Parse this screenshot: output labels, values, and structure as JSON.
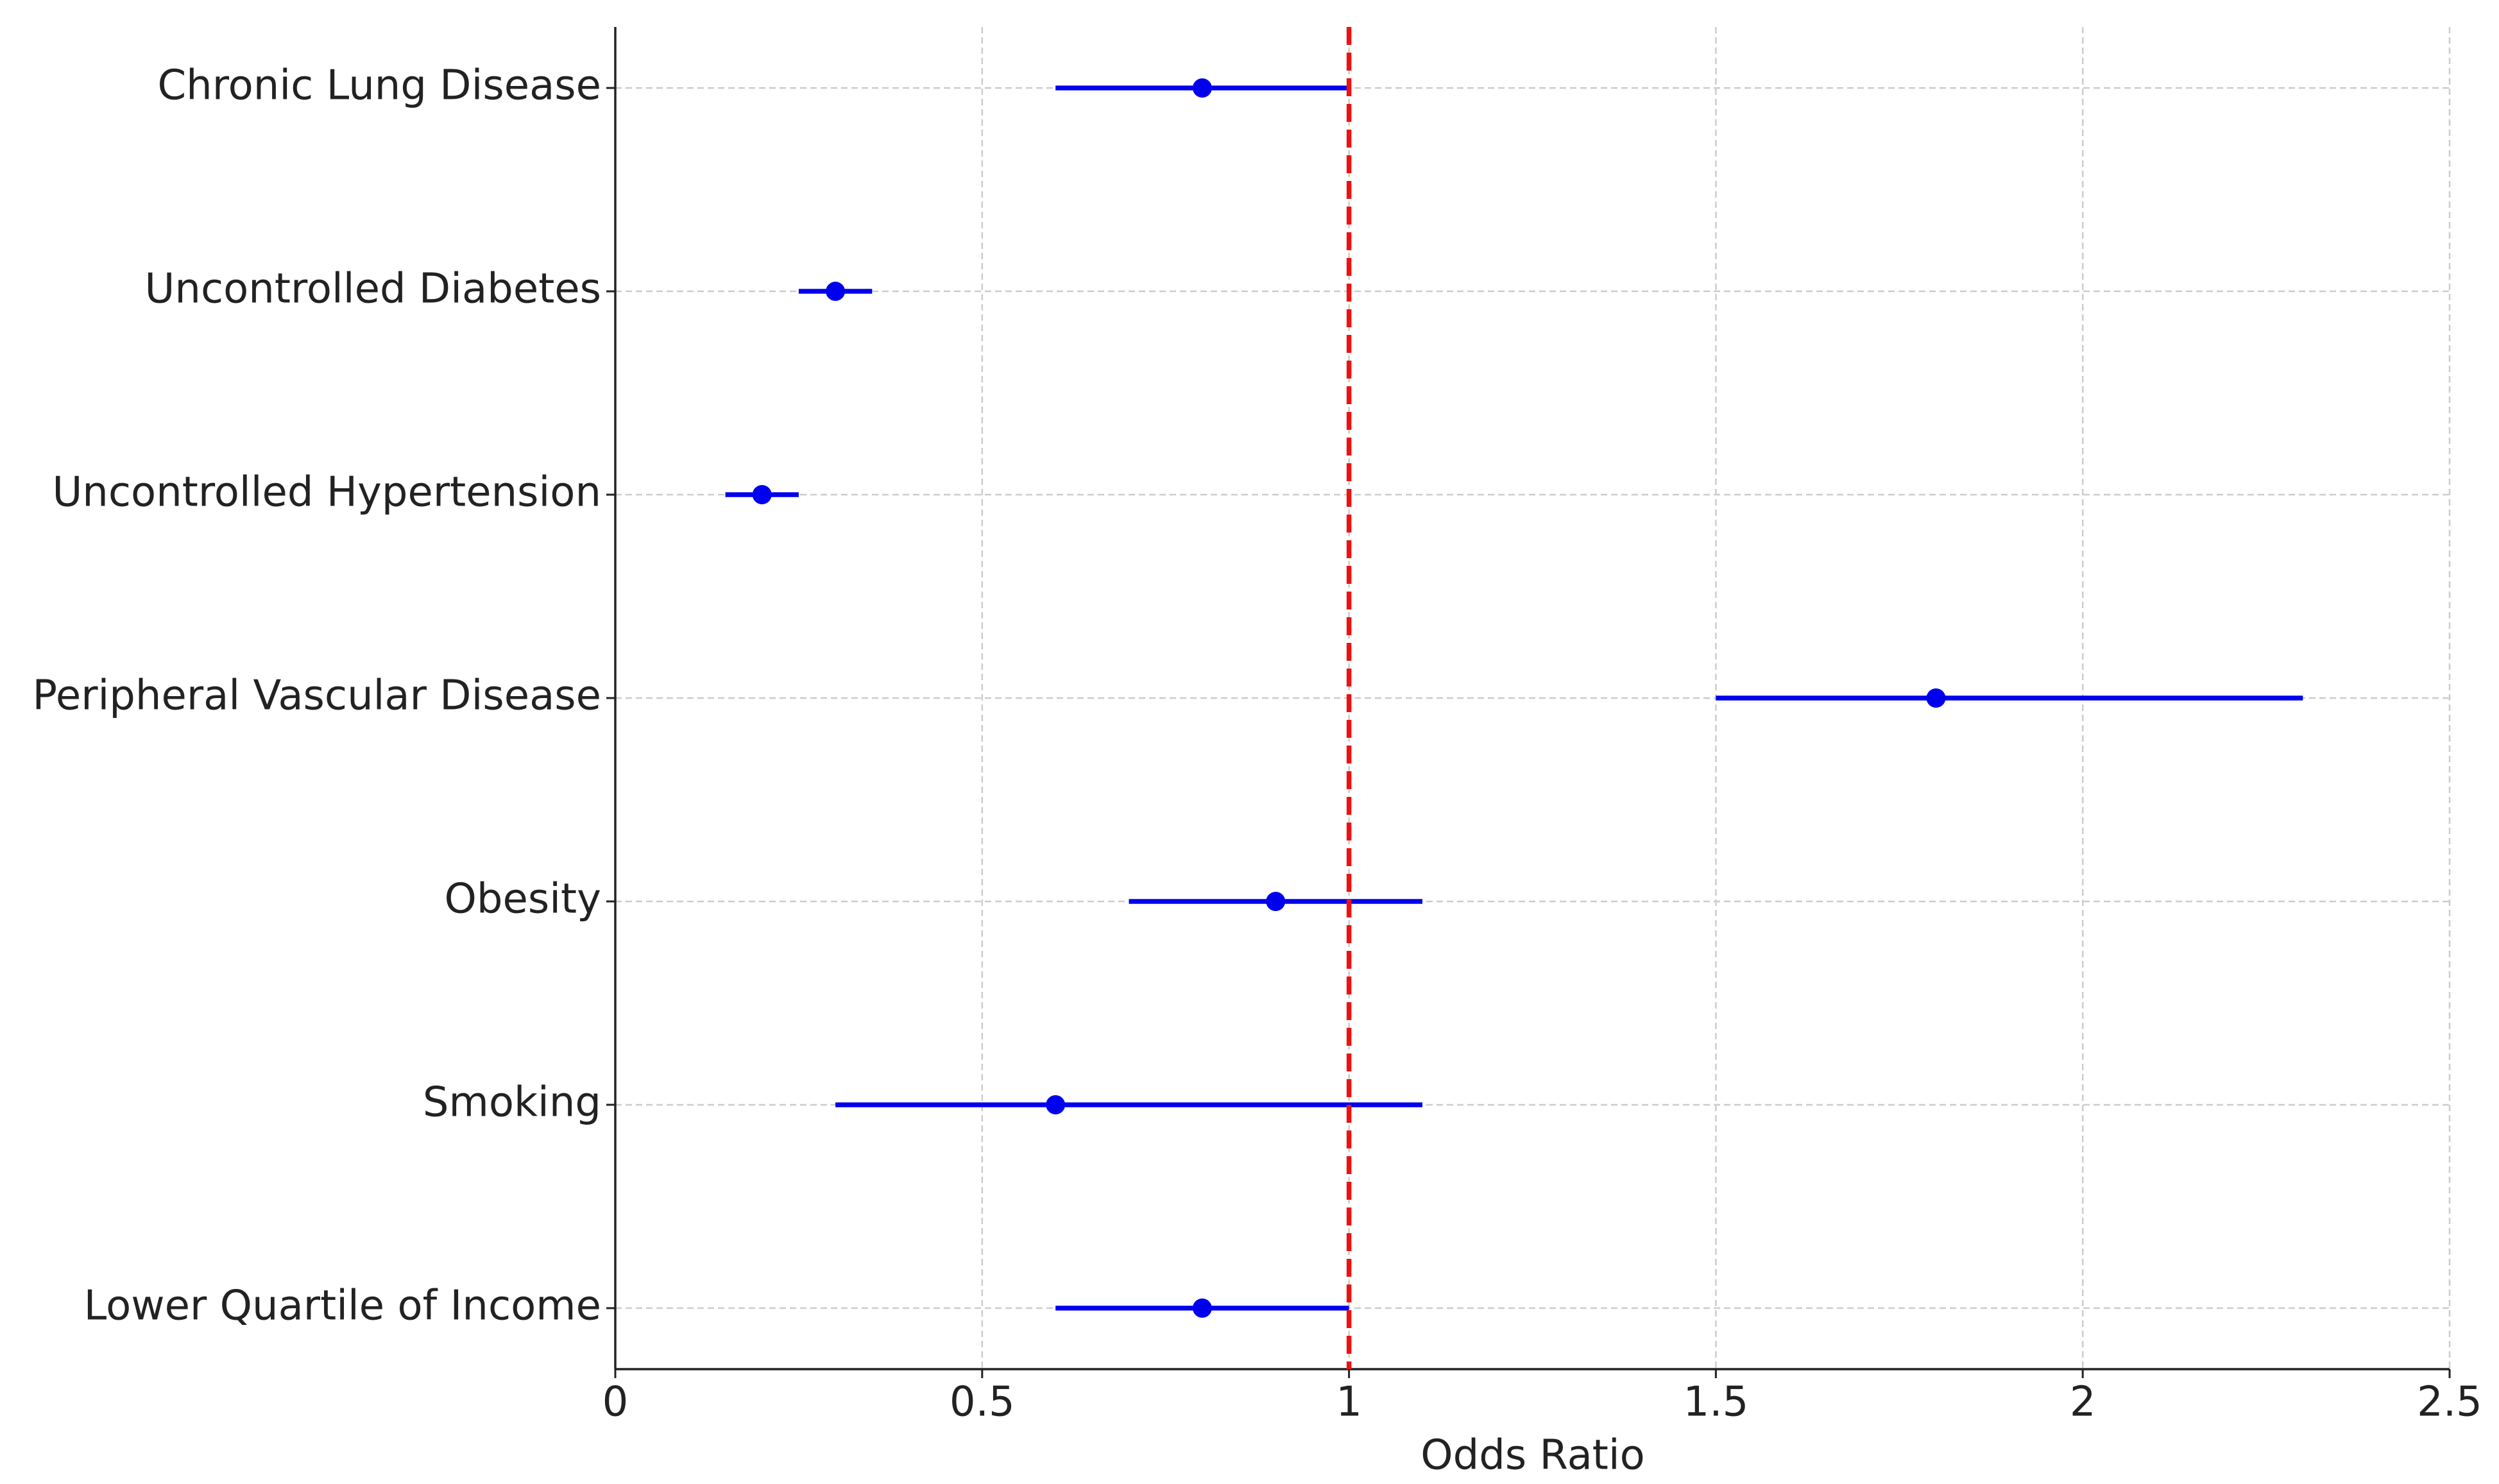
{
  "chart_data": {
    "type": "forest",
    "x_label": "Odds Ratio",
    "categories": [
      "Chronic Lung Disease",
      "Uncontrolled Diabetes",
      "Uncontrolled Hypertension",
      "Peripheral Vascular Disease",
      "Obesity",
      "Smoking",
      "Lower Quartile of Income"
    ],
    "values": [
      0.8,
      0.3,
      0.2,
      1.8,
      0.9,
      0.6,
      0.8
    ],
    "lower": [
      0.6,
      0.25,
      0.15,
      1.5,
      0.7,
      0.3,
      0.6
    ],
    "upper": [
      1.0,
      0.35,
      0.25,
      2.3,
      1.1,
      1.1,
      1.0
    ],
    "color": "#0000ee",
    "xlim": [
      0,
      2.5
    ],
    "xticks": [
      0,
      0.5,
      1,
      1.5,
      2,
      2.5
    ],
    "grid": true,
    "reference_line": {
      "value": 1,
      "color": "#ee1111"
    }
  }
}
